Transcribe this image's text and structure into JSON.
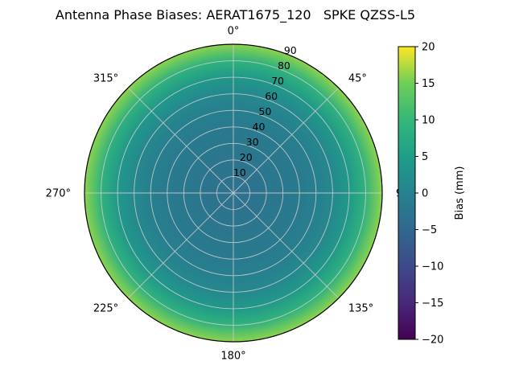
{
  "figure": {
    "background": "#ffffff"
  },
  "chart_data": {
    "type": "heatmap",
    "projection": "polar",
    "title": "Antenna Phase Biases: AERAT1675_120   SPKE QZSS-L5",
    "description": "Polar map of antenna phase bias vs azimuth (theta) and zenith angle (radius); pattern is azimuth-symmetric",
    "theta_zero": "top",
    "theta_direction": "clockwise",
    "theta_ticks": [
      {
        "angle_deg": 0,
        "label": "0°"
      },
      {
        "angle_deg": 45,
        "label": "45°"
      },
      {
        "angle_deg": 90,
        "label": "90"
      },
      {
        "angle_deg": 135,
        "label": "135°"
      },
      {
        "angle_deg": 180,
        "label": "180°"
      },
      {
        "angle_deg": 225,
        "label": "225°"
      },
      {
        "angle_deg": 270,
        "label": "270°"
      },
      {
        "angle_deg": 315,
        "label": "315°"
      }
    ],
    "radial_max": 90,
    "radial_label_angle_deg": 22.5,
    "radial_ticks": [
      {
        "value": 10,
        "label": "10"
      },
      {
        "value": 20,
        "label": "20"
      },
      {
        "value": 30,
        "label": "30"
      },
      {
        "value": 40,
        "label": "40"
      },
      {
        "value": 50,
        "label": "50"
      },
      {
        "value": 60,
        "label": "60"
      },
      {
        "value": 70,
        "label": "70"
      },
      {
        "value": 80,
        "label": "80"
      },
      {
        "value": 90,
        "label": "90"
      }
    ],
    "radial_profile": {
      "zenith_deg": [
        0,
        10,
        20,
        30,
        40,
        50,
        60,
        70,
        80,
        90
      ],
      "bias_mm": [
        -3,
        -3,
        -2.5,
        -2,
        -1.5,
        -0.5,
        1,
        4,
        9,
        16
      ]
    },
    "colorbar": {
      "label": "Bias (mm)",
      "min": -20,
      "max": 20,
      "ticks": [
        {
          "value": -20,
          "label": "−20"
        },
        {
          "value": -15,
          "label": "−15"
        },
        {
          "value": -10,
          "label": "−10"
        },
        {
          "value": -5,
          "label": "−5"
        },
        {
          "value": 0,
          "label": "0"
        },
        {
          "value": 5,
          "label": "5"
        },
        {
          "value": 10,
          "label": "10"
        },
        {
          "value": 15,
          "label": "15"
        },
        {
          "value": 20,
          "label": "20"
        }
      ]
    },
    "colormap": {
      "name": "viridis",
      "stops": [
        "#440154",
        "#482878",
        "#3e4a89",
        "#31688e",
        "#26828e",
        "#1f9e89",
        "#35b779",
        "#6ece58",
        "#fde725"
      ]
    },
    "grid_color": "#cccccc",
    "axis_edge_color": "#000000",
    "text_color": "#000000"
  }
}
